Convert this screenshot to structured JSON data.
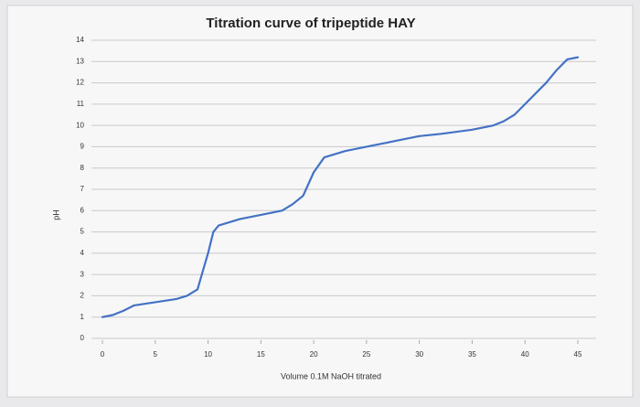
{
  "chart_data": {
    "type": "line",
    "title": "Titration curve of tripeptide HAY",
    "x_label": "Volume 0.1M NaOH titrated",
    "y_label": "pH",
    "x": [
      0,
      1,
      2,
      3,
      5,
      7,
      8,
      9,
      10,
      10.5,
      11,
      13,
      15,
      17,
      18,
      19,
      20,
      21,
      23,
      25,
      27,
      28,
      30,
      32,
      35,
      37,
      38,
      39,
      40,
      42,
      43,
      44,
      45
    ],
    "values": [
      1.0,
      1.1,
      1.3,
      1.55,
      1.7,
      1.85,
      2.0,
      2.3,
      4.0,
      5.0,
      5.3,
      5.6,
      5.8,
      6.0,
      6.3,
      6.7,
      7.8,
      8.5,
      8.8,
      9.0,
      9.2,
      9.3,
      9.5,
      9.6,
      9.8,
      10.0,
      10.2,
      10.5,
      11.0,
      12.0,
      12.6,
      13.1,
      13.2
    ],
    "color": "#4472c4",
    "xlim": [
      0,
      45
    ],
    "xticks": [
      0,
      5,
      10,
      15,
      20,
      25,
      30,
      35,
      40,
      45
    ],
    "ylim": [
      0,
      14
    ],
    "yticks": [
      0,
      1,
      2,
      3,
      4,
      5,
      6,
      7,
      8,
      9,
      10,
      11,
      12,
      13,
      14
    ],
    "grid": true
  }
}
